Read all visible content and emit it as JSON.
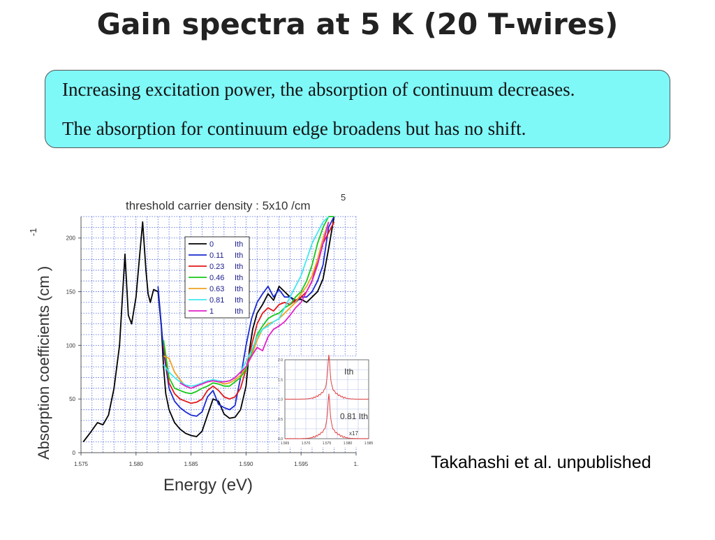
{
  "slide": {
    "title": "Gain spectra at 5 K (20 T-wires)",
    "note_line1": "Increasing excitation power, the absorption of continuum decreases.",
    "note_line2": "The absorption for continuum edge broadens but has no shift.",
    "credit": "Takahashi et al. unpublished"
  },
  "chart_data": [
    {
      "type": "line",
      "title": "threshold carrier density : 5x10 /cm",
      "title_superscript": "5",
      "xlabel": "Energy (eV)",
      "ylabel": "Absorption coefficients (cm  )",
      "ylabel_superscript": "-1",
      "xlim": [
        1.575,
        1.6
      ],
      "ylim": [
        0,
        220
      ],
      "xticks": [
        1.575,
        1.58,
        1.585,
        1.59,
        1.595,
        1.6
      ],
      "xtick_labels": [
        "1.575",
        "1.580",
        "1.585",
        "1.590",
        "1.595",
        "1."
      ],
      "yticks": [
        0,
        50,
        100,
        150,
        200
      ],
      "grid": true,
      "legend_position": "top-center",
      "series": [
        {
          "name": "0",
          "unit": "Ith",
          "color": "#000000",
          "x": [
            1.5752,
            1.5758,
            1.5765,
            1.577,
            1.5775,
            1.578,
            1.5785,
            1.579,
            1.5793,
            1.5796,
            1.58,
            1.5803,
            1.5806,
            1.5809,
            1.5811,
            1.5813,
            1.5816,
            1.582,
            1.5823,
            1.5825,
            1.5827,
            1.583,
            1.5835,
            1.584,
            1.5845,
            1.585,
            1.5855,
            1.586,
            1.5865,
            1.587,
            1.5875,
            1.588,
            1.5885,
            1.589,
            1.5895,
            1.59,
            1.5903,
            1.5906,
            1.591,
            1.5915,
            1.592,
            1.5925,
            1.593,
            1.5935,
            1.594,
            1.5945,
            1.595,
            1.5955,
            1.596,
            1.5965,
            1.597,
            1.5975,
            1.598
          ],
          "y": [
            10,
            18,
            28,
            26,
            35,
            60,
            100,
            185,
            128,
            120,
            145,
            180,
            215,
            170,
            148,
            140,
            152,
            150,
            118,
            80,
            55,
            40,
            28,
            22,
            18,
            16,
            15,
            20,
            35,
            50,
            48,
            36,
            32,
            33,
            40,
            62,
            95,
            115,
            130,
            138,
            148,
            142,
            155,
            150,
            145,
            142,
            143,
            140,
            145,
            150,
            162,
            190,
            225
          ]
        },
        {
          "name": "0.11",
          "unit": "Ith",
          "color": "#1a2ad0",
          "x": [
            1.582,
            1.5825,
            1.583,
            1.5835,
            1.584,
            1.5845,
            1.585,
            1.5855,
            1.586,
            1.5865,
            1.587,
            1.5875,
            1.588,
            1.5885,
            1.589,
            1.5895,
            1.59,
            1.5905,
            1.591,
            1.5915,
            1.592,
            1.5925,
            1.593,
            1.5935,
            1.594,
            1.5945,
            1.595,
            1.5955,
            1.596,
            1.5965,
            1.597,
            1.5975,
            1.598
          ],
          "y": [
            155,
            95,
            60,
            48,
            42,
            38,
            35,
            34,
            38,
            52,
            58,
            45,
            42,
            40,
            44,
            70,
            100,
            125,
            140,
            148,
            155,
            145,
            152,
            145,
            145,
            140,
            145,
            145,
            150,
            160,
            175,
            210,
            225
          ]
        },
        {
          "name": "0.23",
          "unit": "Ith",
          "color": "#e01818",
          "x": [
            1.5825,
            1.583,
            1.5835,
            1.584,
            1.5845,
            1.585,
            1.5855,
            1.586,
            1.5865,
            1.587,
            1.5875,
            1.588,
            1.5885,
            1.589,
            1.5895,
            1.59,
            1.5905,
            1.591,
            1.5915,
            1.592,
            1.5925,
            1.593,
            1.5935,
            1.594,
            1.5945,
            1.595,
            1.5955,
            1.596,
            1.5965,
            1.597,
            1.5975,
            1.598
          ],
          "y": [
            100,
            65,
            55,
            50,
            48,
            46,
            47,
            50,
            58,
            62,
            58,
            52,
            50,
            52,
            60,
            78,
            100,
            120,
            130,
            135,
            132,
            138,
            140,
            138,
            142,
            145,
            150,
            160,
            180,
            195,
            205,
            215
          ]
        },
        {
          "name": "0.46",
          "unit": "Ith",
          "color": "#18c818",
          "x": [
            1.5825,
            1.583,
            1.5835,
            1.584,
            1.5845,
            1.585,
            1.5855,
            1.586,
            1.5865,
            1.587,
            1.5875,
            1.588,
            1.5885,
            1.589,
            1.5895,
            1.59,
            1.5905,
            1.591,
            1.5915,
            1.592,
            1.5925,
            1.593,
            1.5935,
            1.594,
            1.5945,
            1.595,
            1.5955,
            1.596,
            1.5965,
            1.597,
            1.5975,
            1.598
          ],
          "y": [
            105,
            70,
            60,
            58,
            56,
            55,
            57,
            60,
            62,
            65,
            64,
            62,
            62,
            66,
            70,
            78,
            92,
            110,
            118,
            125,
            128,
            130,
            135,
            138,
            145,
            150,
            160,
            175,
            195,
            210,
            220,
            230
          ]
        },
        {
          "name": "0.63",
          "unit": "Ith",
          "color": "#f0a020",
          "x": [
            1.5825,
            1.583,
            1.5835,
            1.584,
            1.5845,
            1.585,
            1.5855,
            1.586,
            1.5865,
            1.587,
            1.5875,
            1.588,
            1.5885,
            1.589,
            1.5895,
            1.59,
            1.5905,
            1.591,
            1.5915,
            1.592,
            1.5925,
            1.593,
            1.5935,
            1.594,
            1.5945,
            1.595,
            1.5955,
            1.596,
            1.5965,
            1.597,
            1.5975
          ],
          "y": [
            90,
            88,
            75,
            68,
            62,
            60,
            62,
            64,
            66,
            67,
            66,
            64,
            65,
            68,
            72,
            80,
            90,
            105,
            115,
            120,
            122,
            125,
            130,
            135,
            140,
            148,
            155,
            165,
            180,
            200,
            215
          ]
        },
        {
          "name": "0.81",
          "unit": "Ith",
          "color": "#40e8f0",
          "x": [
            1.5825,
            1.583,
            1.5835,
            1.584,
            1.5845,
            1.585,
            1.5855,
            1.586,
            1.5865,
            1.587,
            1.5875,
            1.588,
            1.5885,
            1.589,
            1.5895,
            1.59,
            1.5905,
            1.591,
            1.5915,
            1.592,
            1.5925,
            1.593,
            1.5935,
            1.594,
            1.5945,
            1.595,
            1.5955,
            1.596,
            1.5965,
            1.597,
            1.5975
          ],
          "y": [
            82,
            75,
            70,
            66,
            63,
            62,
            63,
            65,
            67,
            68,
            67,
            66,
            67,
            70,
            75,
            85,
            95,
            108,
            115,
            118,
            122,
            125,
            135,
            145,
            155,
            165,
            180,
            195,
            205,
            215,
            225
          ]
        },
        {
          "name": "1",
          "unit": "Ith",
          "color": "#e020c8",
          "x": [
            1.584,
            1.5845,
            1.585,
            1.5855,
            1.586,
            1.5865,
            1.587,
            1.5875,
            1.588,
            1.5885,
            1.589,
            1.5895,
            1.59,
            1.5905,
            1.591,
            1.5915,
            1.592,
            1.5925,
            1.593,
            1.5935,
            1.594,
            1.5945,
            1.595,
            1.5955,
            1.596,
            1.5965,
            1.597,
            1.5975
          ],
          "y": [
            65,
            62,
            60,
            62,
            64,
            66,
            67,
            66,
            66,
            67,
            70,
            75,
            80,
            90,
            98,
            95,
            108,
            115,
            118,
            122,
            128,
            135,
            140,
            150,
            160,
            175,
            195,
            215
          ]
        }
      ]
    },
    {
      "type": "line",
      "role": "inset",
      "xlim": [
        1.565,
        1.585
      ],
      "ylim": [
        0,
        2.0
      ],
      "xtick_labels": [
        "1.565",
        "1.570",
        "1.575",
        "1.580",
        "1.585"
      ],
      "ytick_labels": [
        "0.0",
        "0.5",
        "1.0",
        "1.5",
        "2.0"
      ],
      "grid": true,
      "annotations": [
        "Ith",
        "0.81 Ith",
        "x17"
      ],
      "series": [
        {
          "color": "#e04040",
          "baseline": 1.0,
          "peak_x": 1.5755,
          "peak_y": 1.95
        },
        {
          "color": "#e04040",
          "baseline": 0.0,
          "peak_x": 1.5755,
          "peak_y": 0.95
        }
      ]
    }
  ]
}
